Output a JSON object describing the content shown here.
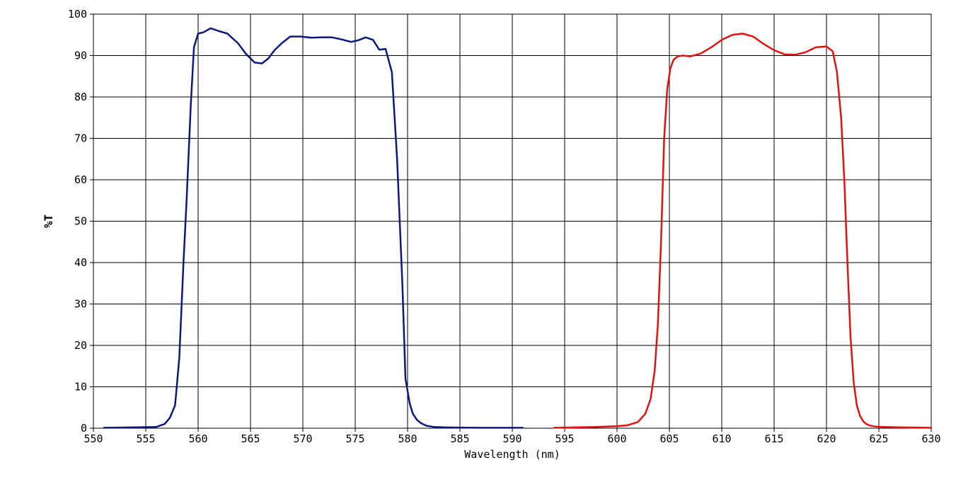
{
  "chart_data": {
    "type": "line",
    "xlabel": "Wavelength (nm)",
    "ylabel": "%T",
    "xlim": [
      550,
      630
    ],
    "ylim": [
      0,
      100
    ],
    "xticks": [
      550,
      555,
      560,
      565,
      570,
      575,
      580,
      585,
      590,
      595,
      600,
      605,
      610,
      615,
      620,
      625,
      630
    ],
    "yticks": [
      0,
      10,
      20,
      30,
      40,
      50,
      60,
      70,
      80,
      90,
      100
    ],
    "grid": true,
    "series": [
      {
        "color": "#0b1a7a",
        "x": [
          551,
          554,
          556,
          556.8,
          557.3,
          557.8,
          558.2,
          558.6,
          558.9,
          559.3,
          559.6,
          560,
          560.5,
          561.2,
          562,
          562.8,
          563.8,
          564.6,
          565.4,
          566.1,
          566.7,
          567.3,
          568,
          568.8,
          569.8,
          570.8,
          571.8,
          572.8,
          573.7,
          574.6,
          575.3,
          576,
          576.7,
          577.3,
          577.9,
          578.5,
          579,
          579.5,
          579.8,
          580.2,
          580.5,
          580.9,
          581.3,
          581.8,
          582.5,
          583.5,
          585,
          587,
          589,
          591
        ],
        "y": [
          0.1,
          0.2,
          0.3,
          1.0,
          2.5,
          5.5,
          17,
          40,
          55,
          78,
          92,
          95.3,
          95.6,
          96.6,
          95.9,
          95.3,
          93,
          90.3,
          88.3,
          88.1,
          89.3,
          91.3,
          93,
          94.6,
          94.6,
          94.3,
          94.4,
          94.4,
          93.9,
          93.3,
          93.7,
          94.4,
          93.8,
          91.4,
          91.6,
          86,
          65,
          35,
          12,
          6,
          3.5,
          2.0,
          1.2,
          0.6,
          0.3,
          0.2,
          0.15,
          0.1,
          0.1,
          0.1
        ]
      },
      {
        "color": "#e41111",
        "x": [
          594,
          598,
          600,
          601,
          602,
          602.7,
          603.2,
          603.6,
          603.9,
          604.2,
          604.5,
          604.8,
          605.1,
          605.4,
          605.8,
          606.3,
          607,
          608,
          609,
          610,
          611,
          612,
          613,
          614,
          615,
          616,
          617,
          618,
          619,
          620,
          620.6,
          621,
          621.4,
          621.7,
          622,
          622.3,
          622.6,
          622.9,
          623.2,
          623.5,
          623.8,
          624.2,
          624.7,
          625.5,
          627,
          630
        ],
        "y": [
          0.1,
          0.3,
          0.5,
          0.7,
          1.5,
          3.5,
          7,
          14,
          25,
          45,
          70,
          82,
          87,
          89,
          89.8,
          90,
          89.8,
          90.5,
          92,
          93.8,
          95,
          95.3,
          94.6,
          92.8,
          91.3,
          90.3,
          90.2,
          90.8,
          92,
          92.2,
          91,
          86,
          75,
          60,
          40,
          22,
          11,
          5.5,
          3,
          1.7,
          1,
          0.6,
          0.4,
          0.3,
          0.2,
          0.1
        ]
      }
    ]
  }
}
